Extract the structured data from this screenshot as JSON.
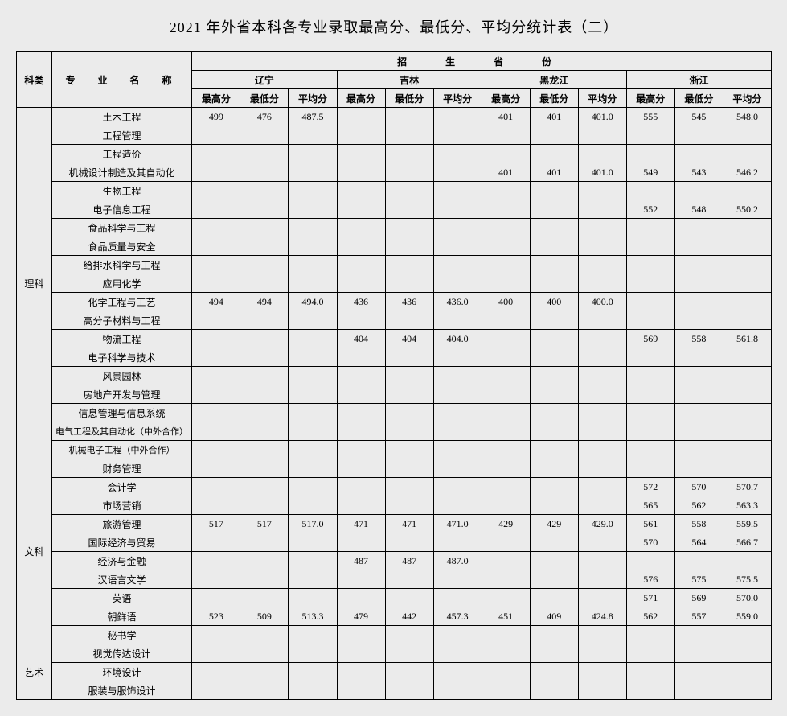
{
  "title": "2021 年外省本科各专业录取最高分、最低分、平均分统计表（二）",
  "header": {
    "category": "科类",
    "major": "专　业　名　称",
    "provinces_group": "招　生　省　份",
    "provinces": [
      "辽宁",
      "吉林",
      "黑龙江",
      "浙江"
    ],
    "score_cols": [
      "最高分",
      "最低分",
      "平均分"
    ]
  },
  "categories": [
    {
      "name": "理科",
      "majors": [
        {
          "name": "土木工程",
          "scores": [
            [
              "499",
              "476",
              "487.5"
            ],
            [
              "",
              "",
              ""
            ],
            [
              "401",
              "401",
              "401.0"
            ],
            [
              "555",
              "545",
              "548.0"
            ]
          ]
        },
        {
          "name": "工程管理",
          "scores": [
            [
              "",
              "",
              ""
            ],
            [
              "",
              "",
              ""
            ],
            [
              "",
              "",
              ""
            ],
            [
              "",
              "",
              ""
            ]
          ]
        },
        {
          "name": "工程造价",
          "scores": [
            [
              "",
              "",
              ""
            ],
            [
              "",
              "",
              ""
            ],
            [
              "",
              "",
              ""
            ],
            [
              "",
              "",
              ""
            ]
          ]
        },
        {
          "name": "机械设计制造及其自动化",
          "scores": [
            [
              "",
              "",
              ""
            ],
            [
              "",
              "",
              ""
            ],
            [
              "401",
              "401",
              "401.0"
            ],
            [
              "549",
              "543",
              "546.2"
            ]
          ]
        },
        {
          "name": "生物工程",
          "scores": [
            [
              "",
              "",
              ""
            ],
            [
              "",
              "",
              ""
            ],
            [
              "",
              "",
              ""
            ],
            [
              "",
              "",
              ""
            ]
          ]
        },
        {
          "name": "电子信息工程",
          "scores": [
            [
              "",
              "",
              ""
            ],
            [
              "",
              "",
              ""
            ],
            [
              "",
              "",
              ""
            ],
            [
              "552",
              "548",
              "550.2"
            ]
          ]
        },
        {
          "name": "食品科学与工程",
          "scores": [
            [
              "",
              "",
              ""
            ],
            [
              "",
              "",
              ""
            ],
            [
              "",
              "",
              ""
            ],
            [
              "",
              "",
              ""
            ]
          ]
        },
        {
          "name": "食品质量与安全",
          "scores": [
            [
              "",
              "",
              ""
            ],
            [
              "",
              "",
              ""
            ],
            [
              "",
              "",
              ""
            ],
            [
              "",
              "",
              ""
            ]
          ]
        },
        {
          "name": "给排水科学与工程",
          "scores": [
            [
              "",
              "",
              ""
            ],
            [
              "",
              "",
              ""
            ],
            [
              "",
              "",
              ""
            ],
            [
              "",
              "",
              ""
            ]
          ]
        },
        {
          "name": "应用化学",
          "scores": [
            [
              "",
              "",
              ""
            ],
            [
              "",
              "",
              ""
            ],
            [
              "",
              "",
              ""
            ],
            [
              "",
              "",
              ""
            ]
          ]
        },
        {
          "name": "化学工程与工艺",
          "scores": [
            [
              "494",
              "494",
              "494.0"
            ],
            [
              "436",
              "436",
              "436.0"
            ],
            [
              "400",
              "400",
              "400.0"
            ],
            [
              "",
              "",
              ""
            ]
          ]
        },
        {
          "name": "高分子材料与工程",
          "scores": [
            [
              "",
              "",
              ""
            ],
            [
              "",
              "",
              ""
            ],
            [
              "",
              "",
              ""
            ],
            [
              "",
              "",
              ""
            ]
          ]
        },
        {
          "name": "物流工程",
          "scores": [
            [
              "",
              "",
              ""
            ],
            [
              "404",
              "404",
              "404.0"
            ],
            [
              "",
              "",
              ""
            ],
            [
              "569",
              "558",
              "561.8"
            ]
          ]
        },
        {
          "name": "电子科学与技术",
          "scores": [
            [
              "",
              "",
              ""
            ],
            [
              "",
              "",
              ""
            ],
            [
              "",
              "",
              ""
            ],
            [
              "",
              "",
              ""
            ]
          ]
        },
        {
          "name": "风景园林",
          "scores": [
            [
              "",
              "",
              ""
            ],
            [
              "",
              "",
              ""
            ],
            [
              "",
              "",
              ""
            ],
            [
              "",
              "",
              ""
            ]
          ]
        },
        {
          "name": "房地产开发与管理",
          "scores": [
            [
              "",
              "",
              ""
            ],
            [
              "",
              "",
              ""
            ],
            [
              "",
              "",
              ""
            ],
            [
              "",
              "",
              ""
            ]
          ]
        },
        {
          "name": "信息管理与信息系统",
          "scores": [
            [
              "",
              "",
              ""
            ],
            [
              "",
              "",
              ""
            ],
            [
              "",
              "",
              ""
            ],
            [
              "",
              "",
              ""
            ]
          ]
        },
        {
          "name": "电气工程及其自动化（中外合作）",
          "small": true,
          "scores": [
            [
              "",
              "",
              ""
            ],
            [
              "",
              "",
              ""
            ],
            [
              "",
              "",
              ""
            ],
            [
              "",
              "",
              ""
            ]
          ]
        },
        {
          "name": "机械电子工程（中外合作）",
          "small": true,
          "scores": [
            [
              "",
              "",
              ""
            ],
            [
              "",
              "",
              ""
            ],
            [
              "",
              "",
              ""
            ],
            [
              "",
              "",
              ""
            ]
          ]
        }
      ]
    },
    {
      "name": "文科",
      "majors": [
        {
          "name": "财务管理",
          "scores": [
            [
              "",
              "",
              ""
            ],
            [
              "",
              "",
              ""
            ],
            [
              "",
              "",
              ""
            ],
            [
              "",
              "",
              ""
            ]
          ]
        },
        {
          "name": "会计学",
          "scores": [
            [
              "",
              "",
              ""
            ],
            [
              "",
              "",
              ""
            ],
            [
              "",
              "",
              ""
            ],
            [
              "572",
              "570",
              "570.7"
            ]
          ]
        },
        {
          "name": "市场营销",
          "scores": [
            [
              "",
              "",
              ""
            ],
            [
              "",
              "",
              ""
            ],
            [
              "",
              "",
              ""
            ],
            [
              "565",
              "562",
              "563.3"
            ]
          ]
        },
        {
          "name": "旅游管理",
          "scores": [
            [
              "517",
              "517",
              "517.0"
            ],
            [
              "471",
              "471",
              "471.0"
            ],
            [
              "429",
              "429",
              "429.0"
            ],
            [
              "561",
              "558",
              "559.5"
            ]
          ]
        },
        {
          "name": "国际经济与贸易",
          "scores": [
            [
              "",
              "",
              ""
            ],
            [
              "",
              "",
              ""
            ],
            [
              "",
              "",
              ""
            ],
            [
              "570",
              "564",
              "566.7"
            ]
          ]
        },
        {
          "name": "经济与金融",
          "scores": [
            [
              "",
              "",
              ""
            ],
            [
              "487",
              "487",
              "487.0"
            ],
            [
              "",
              "",
              ""
            ],
            [
              "",
              "",
              ""
            ]
          ]
        },
        {
          "name": "汉语言文学",
          "scores": [
            [
              "",
              "",
              ""
            ],
            [
              "",
              "",
              ""
            ],
            [
              "",
              "",
              ""
            ],
            [
              "576",
              "575",
              "575.5"
            ]
          ]
        },
        {
          "name": "英语",
          "scores": [
            [
              "",
              "",
              ""
            ],
            [
              "",
              "",
              ""
            ],
            [
              "",
              "",
              ""
            ],
            [
              "571",
              "569",
              "570.0"
            ]
          ]
        },
        {
          "name": "朝鲜语",
          "scores": [
            [
              "523",
              "509",
              "513.3"
            ],
            [
              "479",
              "442",
              "457.3"
            ],
            [
              "451",
              "409",
              "424.8"
            ],
            [
              "562",
              "557",
              "559.0"
            ]
          ]
        },
        {
          "name": "秘书学",
          "scores": [
            [
              "",
              "",
              ""
            ],
            [
              "",
              "",
              ""
            ],
            [
              "",
              "",
              ""
            ],
            [
              "",
              "",
              ""
            ]
          ]
        }
      ]
    },
    {
      "name": "艺术",
      "majors": [
        {
          "name": "视觉传达设计",
          "scores": [
            [
              "",
              "",
              ""
            ],
            [
              "",
              "",
              ""
            ],
            [
              "",
              "",
              ""
            ],
            [
              "",
              "",
              ""
            ]
          ]
        },
        {
          "name": "环境设计",
          "scores": [
            [
              "",
              "",
              ""
            ],
            [
              "",
              "",
              ""
            ],
            [
              "",
              "",
              ""
            ],
            [
              "",
              "",
              ""
            ]
          ]
        },
        {
          "name": "服装与服饰设计",
          "scores": [
            [
              "",
              "",
              ""
            ],
            [
              "",
              "",
              ""
            ],
            [
              "",
              "",
              ""
            ],
            [
              "",
              "",
              ""
            ]
          ]
        }
      ]
    }
  ]
}
